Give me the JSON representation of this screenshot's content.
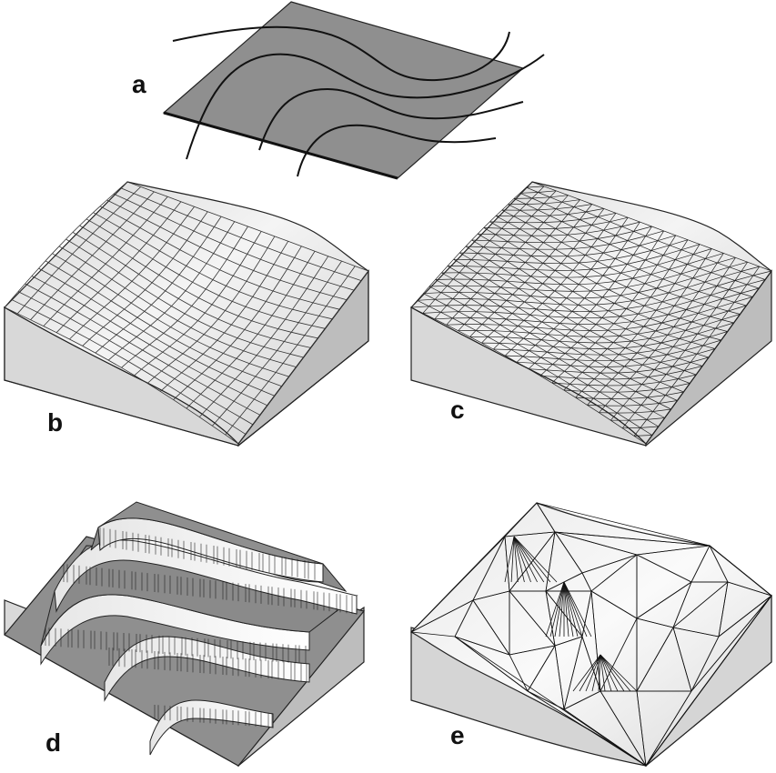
{
  "panels": [
    {
      "id": "a",
      "label": "a"
    },
    {
      "id": "b",
      "label": "b"
    },
    {
      "id": "c",
      "label": "c"
    },
    {
      "id": "d",
      "label": "d"
    },
    {
      "id": "e",
      "label": "e"
    }
  ]
}
